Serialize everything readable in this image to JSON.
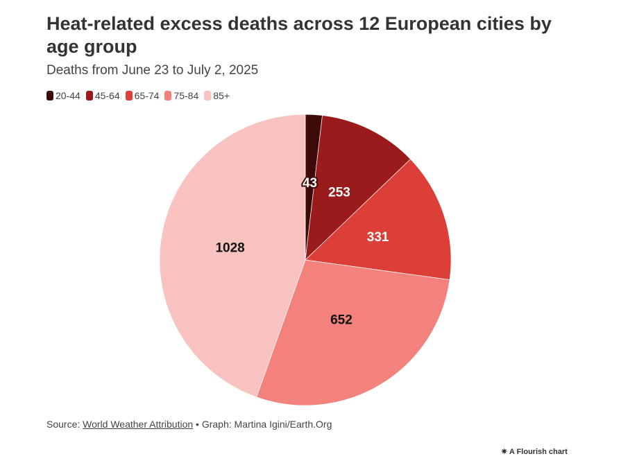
{
  "title": "Heat-related excess deaths across 12 European cities by age group",
  "subtitle": "Deaths from June 23 to July 2, 2025",
  "source": {
    "prefix": "Source: ",
    "link": "World Weather Attribution",
    "suffix": " • Graph: Martina Igini/Earth.Org"
  },
  "flourish": "✷ A Flourish chart",
  "chart_data": {
    "type": "pie",
    "categories": [
      "20-44",
      "45-64",
      "65-74",
      "75-84",
      "85+"
    ],
    "values": [
      43,
      253,
      331,
      652,
      1028
    ],
    "colors": [
      "#3d0a0a",
      "#9a1b1b",
      "#db3f38",
      "#f4827c",
      "#f8c2c1"
    ],
    "label_colors": [
      "#ffffff",
      "#ffffff",
      "#ffffff",
      "#111111",
      "#111111"
    ],
    "legend_placement": "top-left",
    "start": "top",
    "direction": "clockwise"
  }
}
